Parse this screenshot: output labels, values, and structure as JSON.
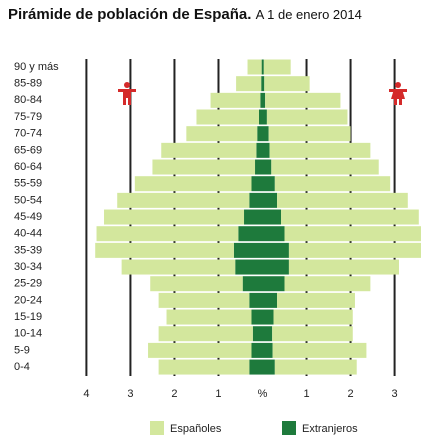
{
  "chart_data": {
    "type": "population-pyramid",
    "title": "Pirámide de población de España.",
    "subtitle": "A 1 de enero 2014",
    "categories": [
      "90 y más",
      "85-89",
      "80-84",
      "75-79",
      "70-74",
      "65-69",
      "60-64",
      "55-59",
      "50-54",
      "45-49",
      "40-44",
      "35-39",
      "30-34",
      "25-29",
      "20-24",
      "15-19",
      "10-14",
      "5-9",
      "0-4"
    ],
    "series": [
      {
        "name": "Extranjeros",
        "color": "#1e7a3c",
        "left": [
          0.02,
          0.03,
          0.05,
          0.08,
          0.12,
          0.14,
          0.17,
          0.25,
          0.3,
          0.42,
          0.55,
          0.65,
          0.62,
          0.45,
          0.3,
          0.25,
          0.22,
          0.25,
          0.3
        ],
        "right": [
          0.03,
          0.04,
          0.06,
          0.1,
          0.14,
          0.16,
          0.2,
          0.28,
          0.33,
          0.42,
          0.5,
          0.6,
          0.6,
          0.5,
          0.33,
          0.25,
          0.22,
          0.23,
          0.28
        ]
      },
      {
        "name": "Españoles",
        "color": "#d3e79d",
        "left": [
          0.32,
          0.57,
          1.13,
          1.42,
          1.61,
          2.16,
          2.33,
          2.65,
          3.0,
          3.18,
          3.22,
          3.15,
          2.58,
          2.1,
          2.06,
          1.93,
          2.14,
          2.35,
          2.06
        ],
        "right": [
          0.61,
          1.03,
          1.71,
          1.83,
          1.86,
          2.29,
          2.44,
          2.62,
          2.97,
          3.13,
          3.1,
          3.0,
          2.5,
          1.95,
          1.77,
          1.8,
          1.83,
          2.13,
          1.86
        ]
      }
    ],
    "legend_order": [
      1,
      0
    ],
    "xlim": [
      -4.1,
      3.6
    ],
    "xticks": [
      {
        "value": -4,
        "label": "4"
      },
      {
        "value": -3,
        "label": "3"
      },
      {
        "value": -2,
        "label": "2"
      },
      {
        "value": -1,
        "label": "1"
      },
      {
        "value": 0,
        "label": "%"
      },
      1,
      2,
      3
    ],
    "grid": true
  }
}
